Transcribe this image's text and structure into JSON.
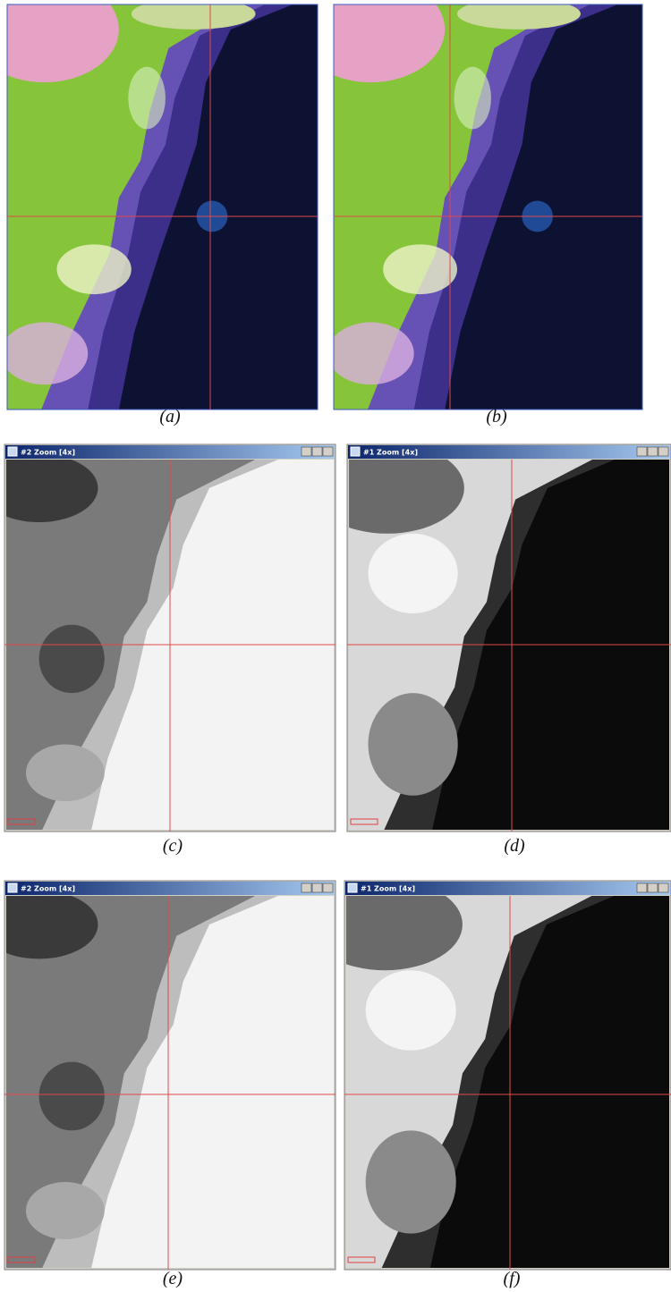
{
  "panels": [
    {
      "label": "(a)"
    },
    {
      "label": "(b)"
    },
    {
      "label": "(c)",
      "window_title": "#2 Zoom [4x]"
    },
    {
      "label": "(d)",
      "window_title": "#1 Zoom [4x]"
    },
    {
      "label": "(e)",
      "window_title": "#2 Zoom [4x]"
    },
    {
      "label": "(f)",
      "window_title": "#1 Zoom [4x]"
    }
  ]
}
